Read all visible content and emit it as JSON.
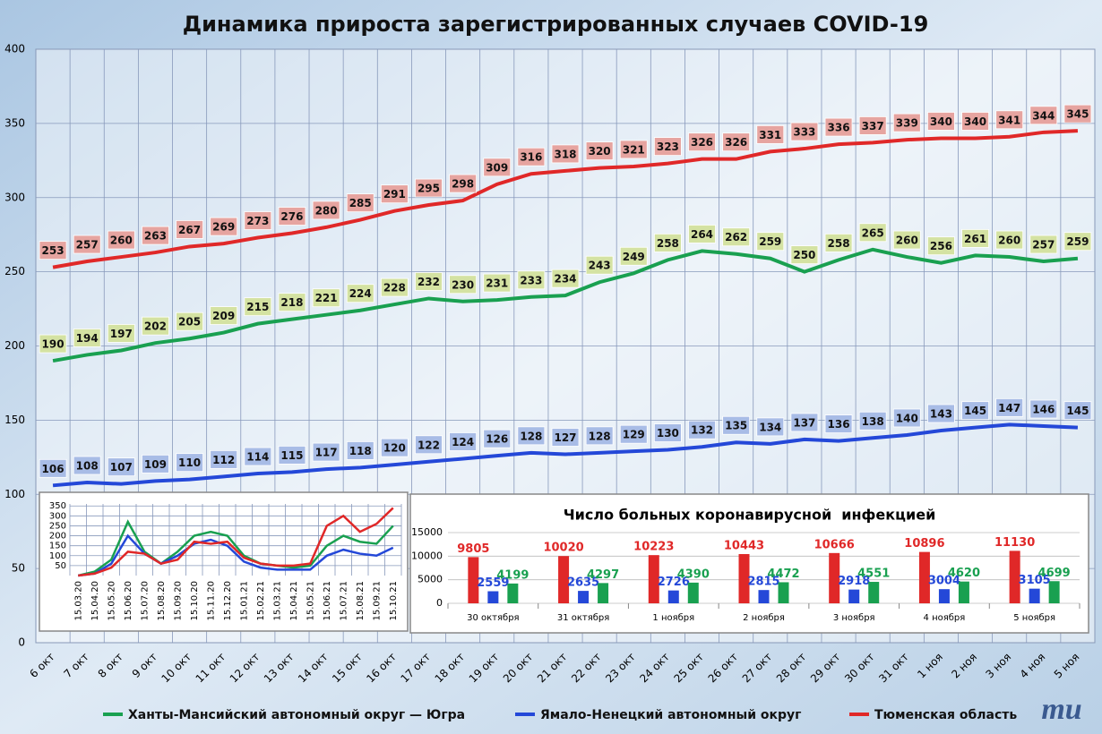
{
  "chart_data": [
    {
      "type": "line",
      "title": "Динамика прироста зарегистрированных случаев COVID-19",
      "categories": [
        "6 окт",
        "7 окт",
        "8 окт",
        "9 окт",
        "10 окт",
        "11 окт",
        "12 окт",
        "13 окт",
        "14 окт",
        "15 окт",
        "16 окт",
        "17 окт",
        "18 окт",
        "19 окт",
        "20 окт",
        "21 окт",
        "22 окт",
        "23 окт",
        "24 окт",
        "25 окт",
        "26 окт",
        "27 окт",
        "28 окт",
        "29 окт",
        "30 окт",
        "31 окт",
        "1 ноя",
        "2 ноя",
        "3 ноя",
        "4 ноя",
        "5 ноя"
      ],
      "series": [
        {
          "name": "Ханты-Мансийский автономный округ — Югра",
          "color": "#19a050",
          "label_color": "#d4e2a2",
          "values": [
            190,
            194,
            197,
            202,
            205,
            209,
            215,
            218,
            221,
            224,
            228,
            232,
            230,
            231,
            233,
            234,
            243,
            249,
            258,
            264,
            262,
            259,
            250,
            258,
            265,
            260,
            256,
            261,
            260,
            257,
            259
          ]
        },
        {
          "name": "Ямало-Ненецкий автономный округ",
          "color": "#2448d8",
          "label_color": "#a8bce6",
          "values": [
            106,
            108,
            107,
            109,
            110,
            112,
            114,
            115,
            117,
            118,
            120,
            122,
            124,
            126,
            128,
            127,
            128,
            129,
            130,
            132,
            135,
            134,
            137,
            136,
            138,
            140,
            143,
            145,
            147,
            146,
            145
          ]
        },
        {
          "name": "Тюменская область",
          "color": "#e02828",
          "label_color": "#e6a4a0",
          "values": [
            253,
            257,
            260,
            263,
            267,
            269,
            273,
            276,
            280,
            285,
            291,
            295,
            298,
            309,
            316,
            318,
            320,
            321,
            323,
            326,
            326,
            331,
            333,
            336,
            337,
            339,
            340,
            340,
            341,
            344,
            345
          ]
        }
      ],
      "ylim": [
        0,
        400
      ],
      "yticks": [
        0,
        50,
        100,
        150,
        200,
        250,
        300,
        350,
        400
      ],
      "grid": true,
      "legend": "bottom",
      "logo": "mu"
    },
    {
      "type": "line",
      "categories": [
        "15.03.20",
        "15.04.20",
        "15.05.20",
        "15.06.20",
        "15.07.20",
        "15.08.20",
        "15.09.20",
        "15.10.20",
        "15.11.20",
        "15.12.20",
        "15.01.21",
        "15.02.21",
        "15.03.21",
        "15.04.21",
        "15.05.21",
        "15.06.21",
        "15.07.21",
        "15.08.21",
        "15.09.21",
        "15.10.21"
      ],
      "series": [
        {
          "color": "#19a050",
          "values": [
            0,
            20,
            80,
            270,
            120,
            60,
            120,
            200,
            220,
            200,
            100,
            60,
            50,
            40,
            50,
            150,
            200,
            170,
            160,
            250
          ]
        },
        {
          "color": "#2448d8",
          "values": [
            0,
            10,
            60,
            200,
            110,
            60,
            100,
            160,
            180,
            150,
            70,
            40,
            30,
            30,
            30,
            100,
            130,
            110,
            100,
            140
          ]
        },
        {
          "color": "#e02828",
          "values": [
            0,
            10,
            40,
            120,
            110,
            60,
            80,
            170,
            160,
            170,
            90,
            60,
            50,
            50,
            60,
            250,
            300,
            220,
            260,
            340
          ]
        }
      ],
      "ylim": [
        0,
        360
      ],
      "yticks": [
        50,
        100,
        150,
        200,
        250,
        300,
        350
      ],
      "grid": true
    },
    {
      "type": "bar",
      "title": "Число больных коронавирусной  инфекцией",
      "categories": [
        "30 октября",
        "31 октября",
        "1 ноября",
        "2 ноября",
        "3 ноября",
        "4 ноября",
        "5 ноября"
      ],
      "series": [
        {
          "color": "#e02828",
          "values": [
            9805,
            10020,
            10223,
            10443,
            10666,
            10896,
            11130
          ]
        },
        {
          "color": "#2448d8",
          "values": [
            2559,
            2635,
            2726,
            2815,
            2918,
            3004,
            3105
          ]
        },
        {
          "color": "#19a050",
          "values": [
            4199,
            4297,
            4390,
            4472,
            4551,
            4620,
            4699
          ]
        }
      ],
      "ylim": [
        0,
        15000
      ],
      "yticks": [
        0,
        5000,
        10000,
        15000
      ],
      "grid": true
    }
  ]
}
